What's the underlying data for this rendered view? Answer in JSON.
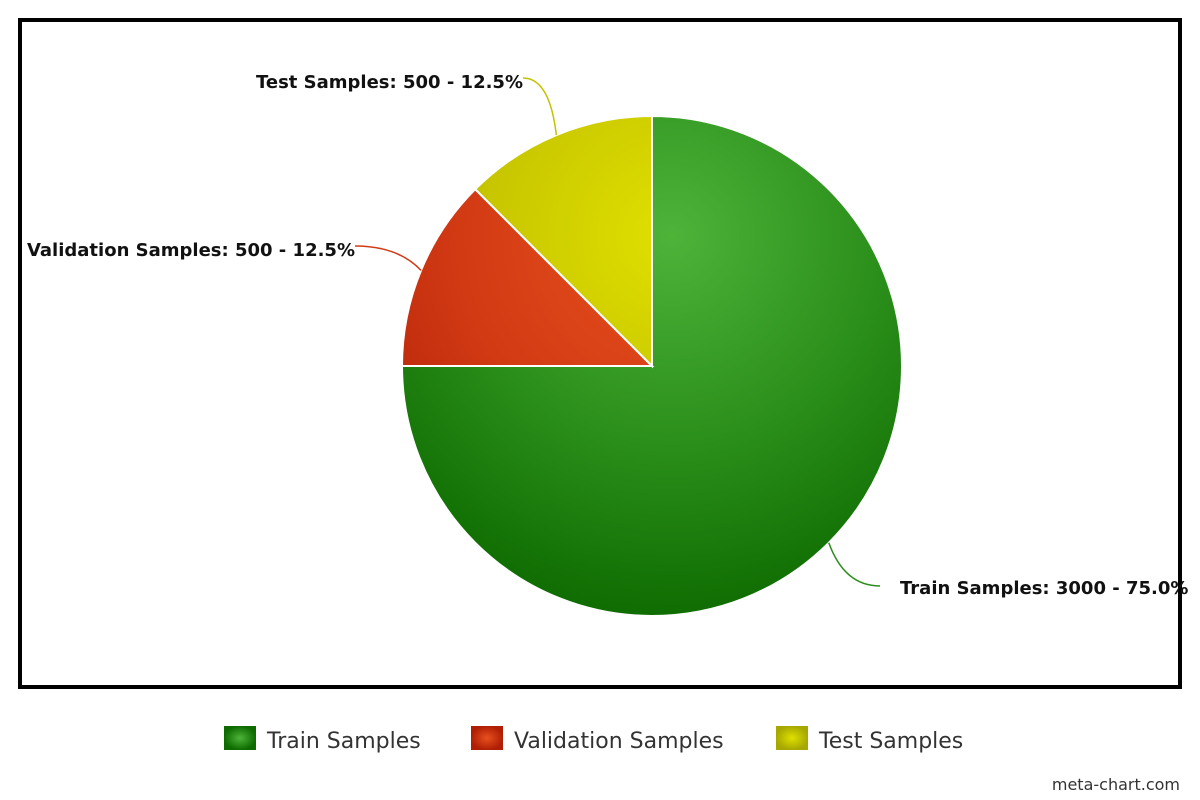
{
  "chart_data": {
    "type": "pie",
    "slices": [
      {
        "name": "Train Samples",
        "value": 3000,
        "percent": 75.0,
        "label": "Train Samples: 3000 - 75.0%",
        "color": "#2a8e1a",
        "light": "#4db339",
        "dark": "#0e6b00"
      },
      {
        "name": "Validation Samples",
        "value": 500,
        "percent": 12.5,
        "label": "Validation Samples: 500 - 12.5%",
        "color": "#d23a14",
        "light": "#e8501e",
        "dark": "#b01f05"
      },
      {
        "name": "Test Samples",
        "value": 500,
        "percent": 12.5,
        "label": "Test Samples: 500 - 12.5%",
        "color": "#c4c200",
        "light": "#e0e000",
        "dark": "#a6a800"
      }
    ],
    "legend": {
      "position": "bottom",
      "items": [
        "Train Samples",
        "Validation Samples",
        "Test Samples"
      ]
    },
    "watermark": "meta-chart.com"
  }
}
